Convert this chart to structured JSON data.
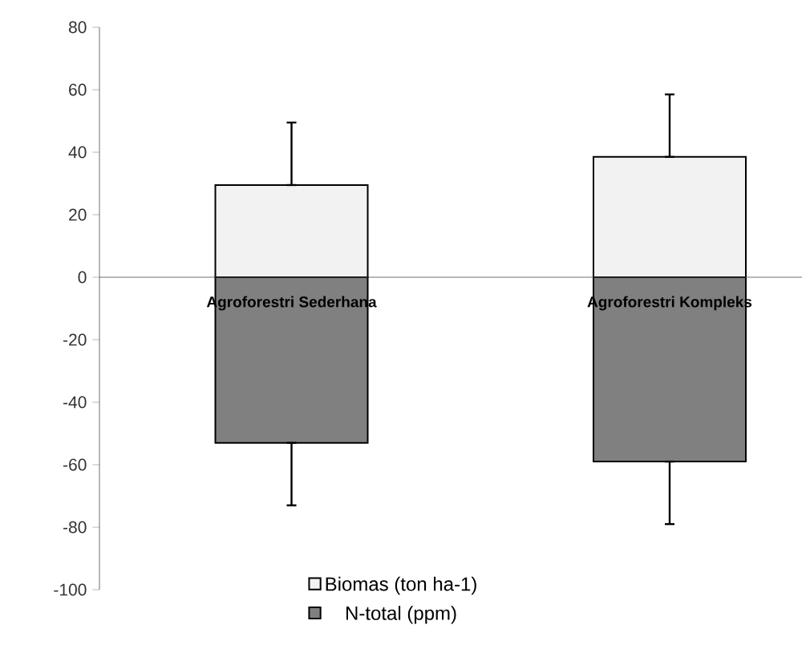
{
  "chart_data": {
    "type": "bar",
    "categories": [
      "Agroforestri Sederhana",
      "Agroforestri Kompleks"
    ],
    "series": [
      {
        "name": "Biomas (ton ha-1)",
        "color": "#f2f2f2",
        "values": [
          29.5,
          38.5
        ],
        "errors": [
          [
            29.5,
            49.5
          ],
          [
            38.5,
            58.5
          ]
        ]
      },
      {
        "name": "N-total (ppm)",
        "color": "#808080",
        "values": [
          -53,
          -59
        ],
        "errors": [
          [
            -73,
            -53
          ],
          [
            -79,
            -59
          ]
        ]
      }
    ],
    "ylim": [
      -100,
      80
    ],
    "yticks": [
      -100,
      -80,
      -60,
      -40,
      -20,
      0,
      20,
      40,
      60,
      80
    ],
    "legend": "bottom",
    "stacked": true
  }
}
